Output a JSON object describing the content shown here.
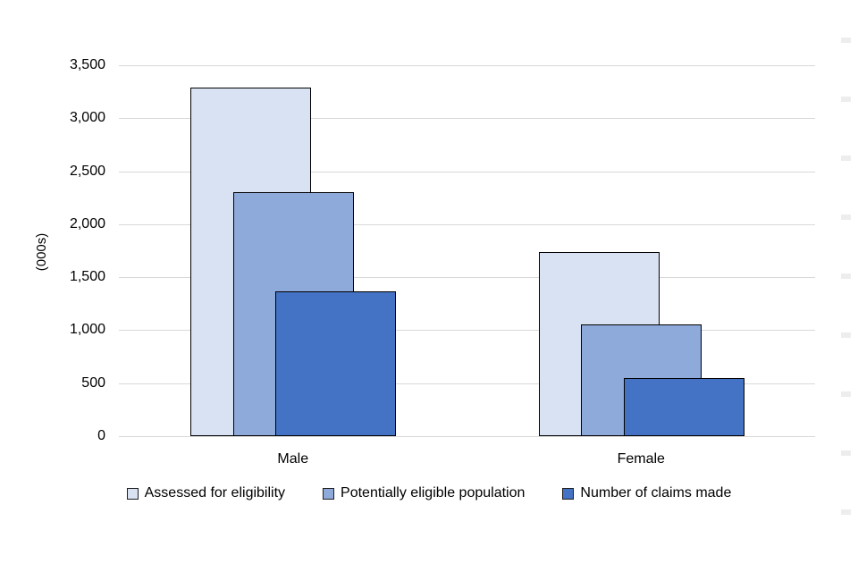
{
  "chart_data": {
    "type": "bar",
    "style": "overlapped-grouped-bars",
    "title": "",
    "ylabel": "(000s)",
    "xlabel": "",
    "categories": [
      "Male",
      "Female"
    ],
    "series": [
      {
        "name": "Assessed for eligibility",
        "color": "#d9e2f3",
        "values": [
          3290,
          1740
        ]
      },
      {
        "name": "Potentially eligible population",
        "color": "#8eaadb",
        "values": [
          2300,
          1055
        ]
      },
      {
        "name": "Number of claims made",
        "color": "#4472c4",
        "values": [
          1370,
          550
        ]
      }
    ],
    "ylim": [
      0,
      3500
    ],
    "y_tick_step": 500,
    "y_tick_labels": [
      "0",
      "500",
      "1,000",
      "1,500",
      "2,000",
      "2,500",
      "3,000",
      "3,500"
    ],
    "grid": "horizontal",
    "gridline_color": "#d9d9d9",
    "bar_border_color": "#000000",
    "legend_position": "bottom"
  }
}
